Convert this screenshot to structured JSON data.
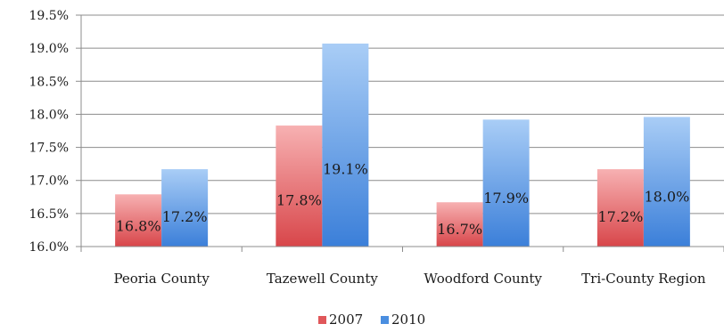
{
  "chart_data": {
    "type": "bar",
    "categories": [
      "Peoria County",
      "Tazewell County",
      "Woodford County",
      "Tri-County Region"
    ],
    "series": [
      {
        "name": "2007",
        "values": [
          16.79,
          17.83,
          16.67,
          17.17
        ],
        "labels": [
          "16.8%",
          "17.8%",
          "16.7%",
          "17.2%"
        ],
        "color": "#e0575a"
      },
      {
        "name": "2010",
        "values": [
          17.17,
          19.07,
          17.92,
          17.96
        ],
        "labels": [
          "17.2%",
          "19.1%",
          "17.9%",
          "18.0%"
        ],
        "color": "#4a8ee0"
      }
    ],
    "ylim": [
      16.0,
      19.5
    ],
    "yticks": [
      "16.0%",
      "16.5%",
      "17.0%",
      "17.5%",
      "18.0%",
      "18.5%",
      "19.0%",
      "19.5%"
    ],
    "ytick_values": [
      16.0,
      16.5,
      17.0,
      17.5,
      18.0,
      18.5,
      19.0,
      19.5
    ],
    "grid": true,
    "legend": "bottom",
    "title": "",
    "xlabel": "",
    "ylabel": ""
  }
}
